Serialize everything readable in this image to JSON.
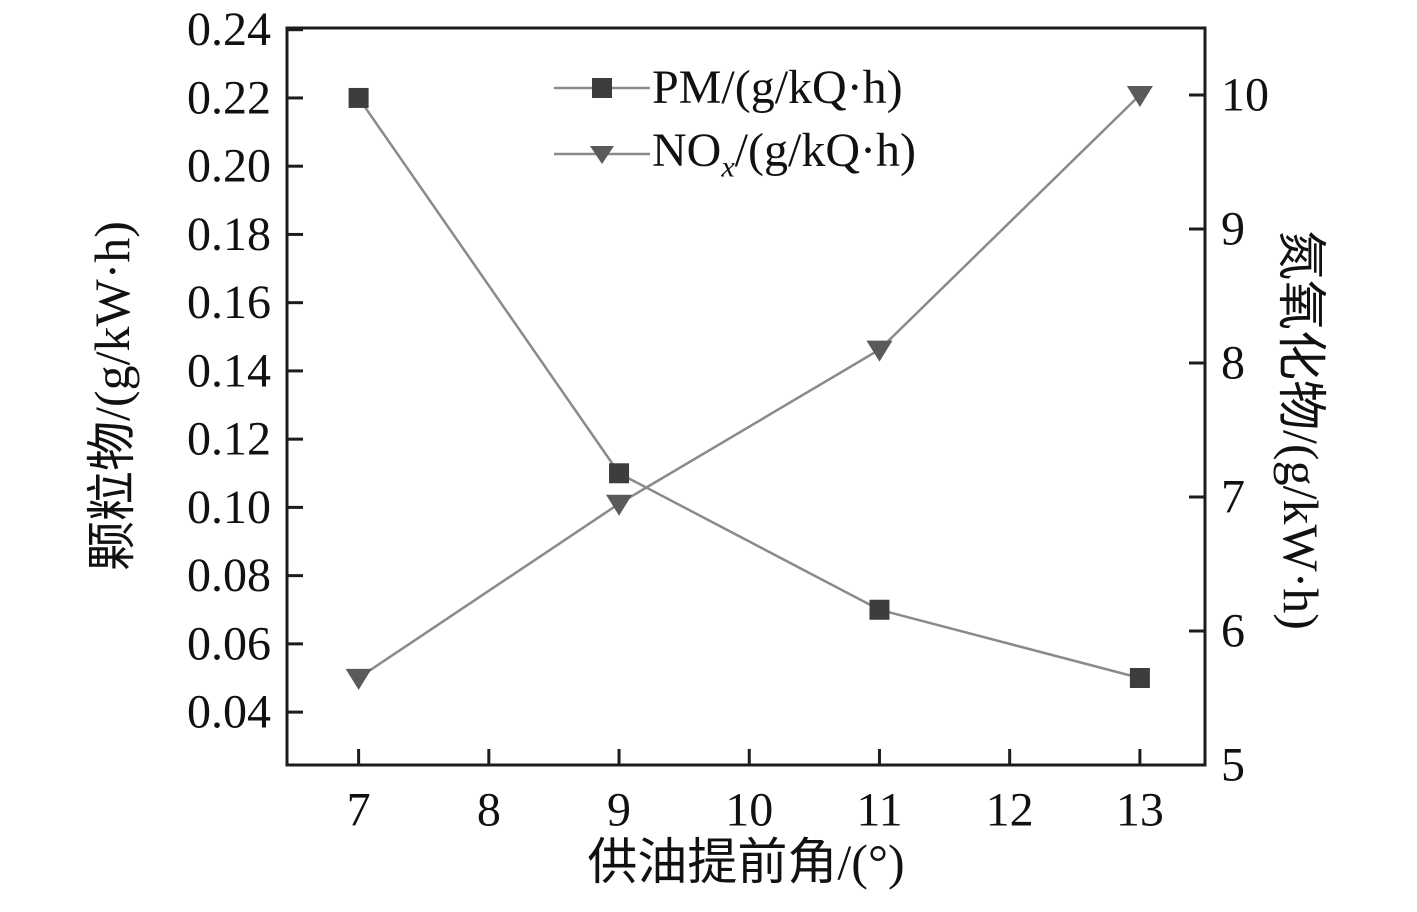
{
  "chart_data": {
    "type": "line",
    "title": "",
    "xlabel": "供油提前角/(°)",
    "ylabel_left": "颗粒物/(g/kW·h)",
    "ylabel_right": "氮氧化物/(g/kW·h)",
    "xlim": [
      6.45,
      13.5
    ],
    "ylim_left": [
      0.0245,
      0.2405
    ],
    "ylim_right": [
      5,
      10.5
    ],
    "grid": false,
    "x_ticks": [
      {
        "v": 7,
        "t": "7"
      },
      {
        "v": 8,
        "t": "8"
      },
      {
        "v": 9,
        "t": "9"
      },
      {
        "v": 10,
        "t": "10"
      },
      {
        "v": 11,
        "t": "11"
      },
      {
        "v": 12,
        "t": "12"
      },
      {
        "v": 13,
        "t": "13"
      }
    ],
    "left_ticks": [
      {
        "v": 0.04,
        "t": "0.04"
      },
      {
        "v": 0.06,
        "t": "0.06"
      },
      {
        "v": 0.08,
        "t": "0.08"
      },
      {
        "v": 0.1,
        "t": "0.10"
      },
      {
        "v": 0.12,
        "t": "0.12"
      },
      {
        "v": 0.14,
        "t": "0.14"
      },
      {
        "v": 0.16,
        "t": "0.16"
      },
      {
        "v": 0.18,
        "t": "0.18"
      },
      {
        "v": 0.2,
        "t": "0.20"
      },
      {
        "v": 0.22,
        "t": "0.22"
      },
      {
        "v": 0.24,
        "t": "0.24"
      }
    ],
    "right_ticks": [
      {
        "v": 5,
        "t": "5"
      },
      {
        "v": 6,
        "t": "6"
      },
      {
        "v": 7,
        "t": "7"
      },
      {
        "v": 8,
        "t": "8"
      },
      {
        "v": 9,
        "t": "9"
      },
      {
        "v": 10,
        "t": "10"
      }
    ],
    "series": [
      {
        "name": "PM/(g/kQ·h)",
        "axis": "left",
        "marker": "square",
        "x": [
          7,
          9,
          11,
          13
        ],
        "y": [
          0.22,
          0.11,
          0.07,
          0.05
        ]
      },
      {
        "name": "NOx/(g/kQ·h)",
        "axis": "right",
        "marker": "triangle-down",
        "x": [
          7,
          9,
          11,
          13
        ],
        "y": [
          5.65,
          6.95,
          8.1,
          10.0
        ]
      }
    ],
    "legend": {
      "position": "top-center-inside",
      "items": [
        {
          "label": "PM/(g/kQ·h)"
        },
        {
          "label_prefix": "NO",
          "label_sub": "x",
          "label_suffix": "/(g/kQ·h)"
        }
      ]
    },
    "colors": {
      "line": "#8a8a8a",
      "marker": "#3d3d3d",
      "marker_secondary": "#5a5a5a",
      "axis": "#1c1c1c",
      "text": "#111111"
    }
  }
}
